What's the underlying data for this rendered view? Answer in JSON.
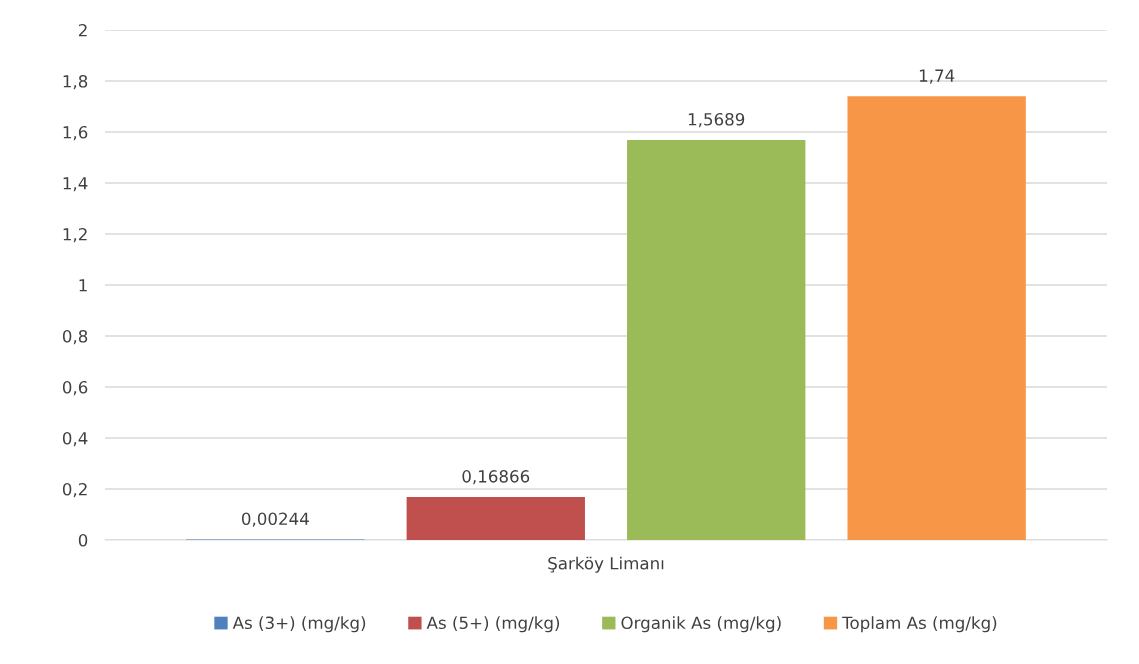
{
  "chart_data": {
    "type": "bar",
    "categories": [
      "Şarköy Limanı"
    ],
    "series": [
      {
        "name": "As (3+) (mg/kg)",
        "color": "#4f81bd",
        "values": [
          0.00244
        ],
        "value_labels": [
          "0,00244"
        ]
      },
      {
        "name": "As (5+) (mg/kg)",
        "color": "#c0504d",
        "values": [
          0.16866
        ],
        "value_labels": [
          "0,16866"
        ]
      },
      {
        "name": "Organik As (mg/kg)",
        "color": "#9bbb59",
        "values": [
          1.5689
        ],
        "value_labels": [
          "1,5689"
        ]
      },
      {
        "name": "Toplam As (mg/kg)",
        "color": "#f79646",
        "values": [
          1.74
        ],
        "value_labels": [
          "1,74"
        ]
      }
    ],
    "ylim": [
      0,
      2
    ],
    "yticks": [
      0,
      {
        "value": 0.2,
        "label": "0,2"
      },
      {
        "value": 0.4,
        "label": "0,4"
      },
      {
        "value": 0.6,
        "label": "0,6"
      },
      {
        "value": 0.8,
        "label": "0,8"
      },
      1,
      {
        "value": 1.2,
        "label": "1,2"
      },
      {
        "value": 1.4,
        "label": "1,4"
      },
      {
        "value": 1.6,
        "label": "1,6"
      },
      {
        "value": 1.8,
        "label": "1,8"
      },
      2
    ],
    "grid": "y",
    "legend": "bottom"
  }
}
